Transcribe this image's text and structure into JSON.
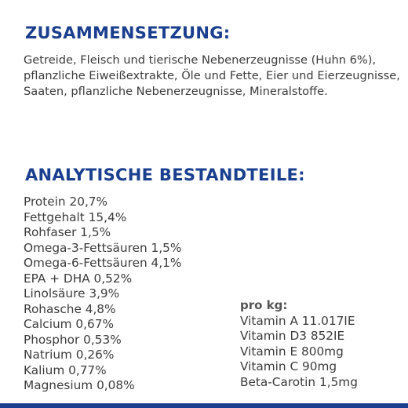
{
  "composition": {
    "title": "ZUSAMMENSETZUNG:",
    "text": "Getreide, Fleisch und tierische Nebenerzeugnisse (Huhn 6%), pflanzliche Eiweißextrakte, Öle und Fette, Eier und Eierzeugnisse, Saaten, pflanzliche Nebenerzeugnisse, Mineralstoffe."
  },
  "analytics": {
    "title": "ANALYTISCHE BESTANDTEILE:",
    "items": [
      "Protein 20,7%",
      "Fettgehalt 15,4%",
      "Rohfaser 1,5%",
      "Omega-3-Fettsäuren 1,5%",
      "Omega-6-Fettsäuren 4,1%",
      "EPA + DHA 0,52%",
      "Linolsäure 3,9%",
      "Rohasche 4,8%",
      "Calcium 0,67%",
      "Phosphor 0,53%",
      "Natrium 0,26%",
      "Kalium 0,77%",
      "Magnesium 0,08%"
    ]
  },
  "per_kg": {
    "title": "pro kg:",
    "items": [
      "Vitamin A 11.017IE",
      "Vitamin D3 852IE",
      "Vitamin E 800mg",
      "Vitamin C 90mg",
      "Beta-Carotin 1,5mg"
    ]
  },
  "colors": {
    "heading": "#1b3f8f",
    "text": "#3c3c3c",
    "bar": "#1b3f8f"
  }
}
